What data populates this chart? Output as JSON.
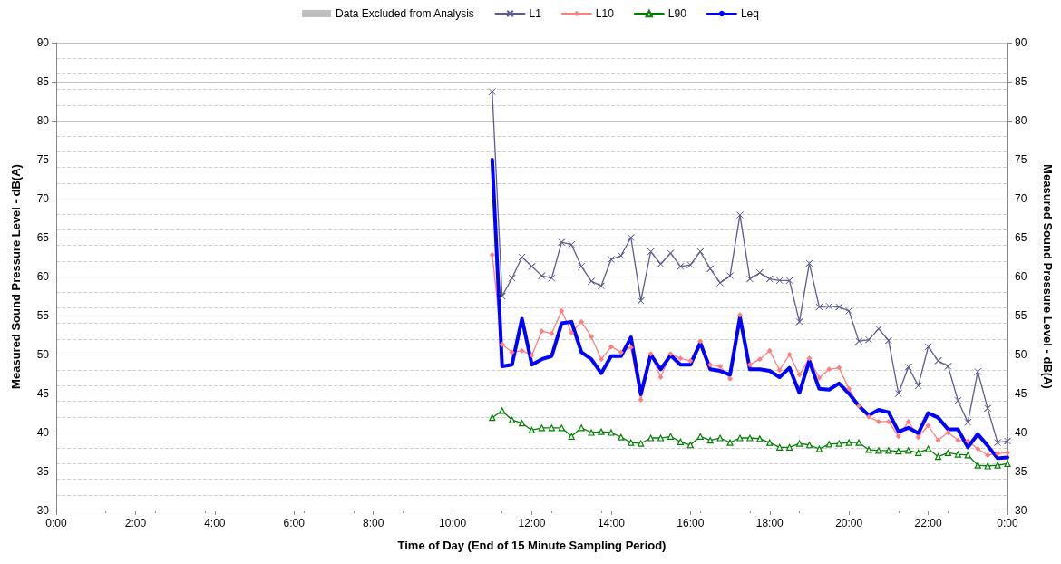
{
  "chart_data": {
    "type": "line",
    "xlabel": "Time of Day (End of 15 Minute Sampling Period)",
    "ylabel": "Measured Sound Pressure Level - dB(A)",
    "y2label": "Measured Sound Pressure Level - dB(A)",
    "x": [
      11,
      11.25,
      11.5,
      11.75,
      12,
      12.25,
      12.5,
      12.75,
      13,
      13.25,
      13.5,
      13.75,
      14,
      14.25,
      14.5,
      14.75,
      15,
      15.25,
      15.5,
      15.75,
      16,
      16.25,
      16.5,
      16.75,
      17,
      17.25,
      17.5,
      17.75,
      18,
      18.25,
      18.5,
      18.75,
      19,
      19.25,
      19.5,
      19.75,
      20,
      20.25,
      20.5,
      20.75,
      21,
      21.25,
      21.5,
      21.75,
      22,
      22.25,
      22.5,
      22.75,
      23,
      23.25,
      23.5,
      23.75,
      24
    ],
    "series": [
      {
        "name": "Data Excluded from Analysis",
        "type": "bar",
        "color": "#bfbfbf",
        "values": [
          null,
          null,
          null,
          null,
          null,
          null,
          null,
          null,
          null,
          null,
          null,
          null,
          null,
          null,
          null,
          null,
          null,
          null,
          null,
          null,
          null,
          null,
          null,
          null,
          null,
          null,
          null,
          null,
          null,
          null,
          null,
          null,
          null,
          null,
          null,
          null,
          null,
          null,
          null,
          null,
          null,
          null,
          null,
          null,
          null,
          null,
          null,
          null,
          null,
          null,
          null,
          null,
          null
        ]
      },
      {
        "name": "L1",
        "color": "#5b5b8f",
        "marker": "cross",
        "values": [
          83.7,
          57.5,
          59.8,
          62.5,
          61.3,
          60.1,
          59.8,
          64.4,
          64.1,
          61.3,
          59.4,
          58.8,
          62.2,
          62.7,
          65.0,
          56.9,
          63.2,
          61.6,
          63.0,
          61.3,
          61.5,
          63.2,
          61.0,
          59.2,
          60.1,
          67.9,
          59.7,
          60.5,
          59.7,
          59.5,
          59.5,
          54.2,
          61.7,
          56.1,
          56.2,
          56.1,
          55.6,
          51.7,
          51.9,
          53.3,
          51.8,
          45.0,
          48.4,
          46.0,
          51.0,
          49.2,
          48.5,
          44.1,
          41.3,
          47.8,
          43.1,
          38.7,
          38.9
        ]
      },
      {
        "name": "L10",
        "color": "#ff7f7f",
        "marker": "diamond",
        "values": [
          62.8,
          51.3,
          50.3,
          50.5,
          49.9,
          53.0,
          52.7,
          55.6,
          52.8,
          54.2,
          52.3,
          49.4,
          51.0,
          50.3,
          50.9,
          44.2,
          50.1,
          47.1,
          50.1,
          49.5,
          49.2,
          51.7,
          48.7,
          48.5,
          46.9,
          55.1,
          48.7,
          49.4,
          50.5,
          48.0,
          50.0,
          47.4,
          49.5,
          47.0,
          48.1,
          48.3,
          45.6,
          43.4,
          42.0,
          41.4,
          41.4,
          39.5,
          41.4,
          39.4,
          40.9,
          39.0,
          40.0,
          39.0,
          38.9,
          37.9,
          37.1,
          37.3,
          37.4
        ]
      },
      {
        "name": "L90",
        "color": "#008000",
        "marker": "triangle",
        "values": [
          41.9,
          42.8,
          41.6,
          41.2,
          40.3,
          40.6,
          40.6,
          40.6,
          39.5,
          40.6,
          40.0,
          40.1,
          40.0,
          39.4,
          38.7,
          38.6,
          39.3,
          39.3,
          39.5,
          38.8,
          38.4,
          39.5,
          39.0,
          39.3,
          38.7,
          39.3,
          39.3,
          39.2,
          38.7,
          38.1,
          38.1,
          38.6,
          38.4,
          37.9,
          38.5,
          38.6,
          38.7,
          38.7,
          37.8,
          37.7,
          37.7,
          37.6,
          37.7,
          37.4,
          37.9,
          36.9,
          37.4,
          37.2,
          37.1,
          35.8,
          35.7,
          35.8,
          36.0
        ]
      },
      {
        "name": "Leq",
        "color": "#0000ff",
        "marker": "none",
        "values": [
          75.0,
          48.5,
          48.7,
          54.6,
          48.7,
          49.4,
          49.8,
          54.0,
          54.2,
          50.3,
          49.4,
          47.6,
          49.8,
          49.8,
          52.2,
          44.9,
          50.0,
          48.1,
          49.9,
          48.7,
          48.7,
          51.5,
          48.1,
          47.9,
          47.4,
          54.8,
          48.1,
          48.1,
          47.9,
          47.1,
          48.3,
          45.1,
          49.2,
          45.6,
          45.5,
          46.3,
          45.0,
          43.4,
          42.2,
          42.9,
          42.6,
          40.1,
          40.6,
          39.9,
          42.5,
          41.9,
          40.4,
          40.4,
          38.1,
          39.8,
          38.3,
          36.7,
          36.8
        ]
      }
    ],
    "xlim": [
      0,
      24
    ],
    "xticks": [
      {
        "value": 0,
        "label": "0:00"
      },
      {
        "value": 2,
        "label": "2:00"
      },
      {
        "value": 4,
        "label": "4:00"
      },
      {
        "value": 6,
        "label": "6:00"
      },
      {
        "value": 8,
        "label": "8:00"
      },
      {
        "value": 10,
        "label": "10:00"
      },
      {
        "value": 12,
        "label": "12:00"
      },
      {
        "value": 14,
        "label": "14:00"
      },
      {
        "value": 16,
        "label": "16:00"
      },
      {
        "value": 18,
        "label": "18:00"
      },
      {
        "value": 20,
        "label": "20:00"
      },
      {
        "value": 22,
        "label": "22:00"
      },
      {
        "value": 24,
        "label": "0:00"
      }
    ],
    "ylim": [
      30,
      90
    ],
    "yticks": [
      30,
      35,
      40,
      45,
      50,
      55,
      60,
      65,
      70,
      75,
      80,
      85,
      90
    ],
    "y2lim": [
      30,
      90
    ],
    "y2ticks": [
      30,
      35,
      40,
      45,
      50,
      55,
      60,
      65,
      70,
      75,
      80,
      85,
      90
    ],
    "grid": "y",
    "legend": "top"
  }
}
